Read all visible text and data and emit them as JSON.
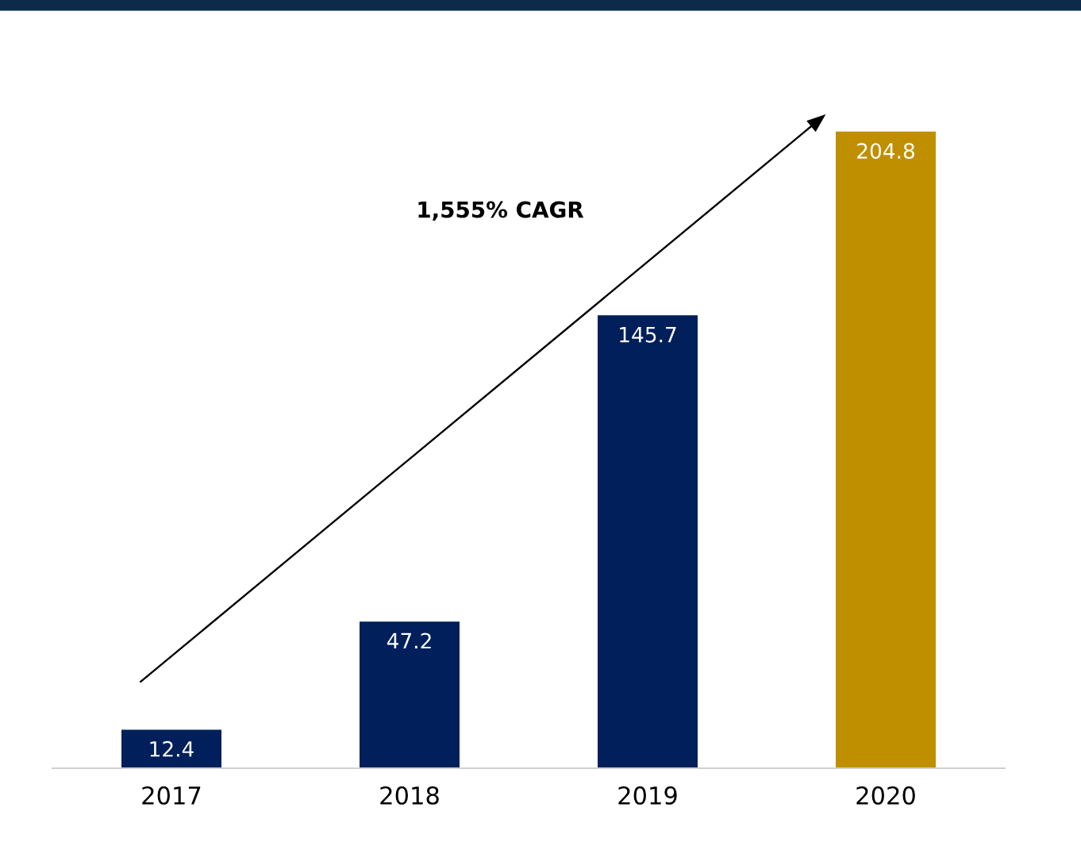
{
  "chart_data": {
    "type": "bar",
    "categories": [
      "2017",
      "2018",
      "2019",
      "2020"
    ],
    "values": [
      12.4,
      47.2,
      145.7,
      204.8
    ],
    "colors": [
      "#001f5b",
      "#001f5b",
      "#001f5b",
      "#bf8f00"
    ],
    "data_labels": true,
    "grid": false,
    "legend": false,
    "annotations": [
      "1,555% CAGR"
    ]
  }
}
